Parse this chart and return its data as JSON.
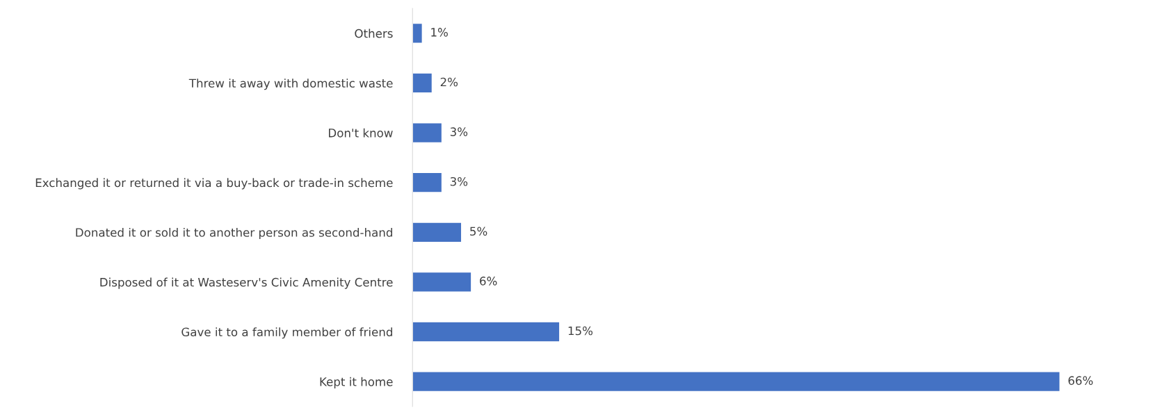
{
  "chart_data": {
    "type": "bar",
    "orientation": "horizontal",
    "categories": [
      "Others",
      "Threw it away with domestic waste",
      "Don't know",
      "Exchanged it or returned it via a buy-back or trade-in scheme",
      "Donated it or sold it to another person as second-hand",
      "Disposed of it at Wasteserv's Civic Amenity Centre",
      "Gave it to a family member of friend",
      "Kept it home"
    ],
    "values": [
      1,
      2,
      3,
      3,
      5,
      6,
      15,
      66
    ],
    "value_labels": [
      "1%",
      "2%",
      "3%",
      "3%",
      "5%",
      "6%",
      "15%",
      "66%"
    ],
    "color": "#4472c4",
    "grid": false,
    "legend": false
  }
}
